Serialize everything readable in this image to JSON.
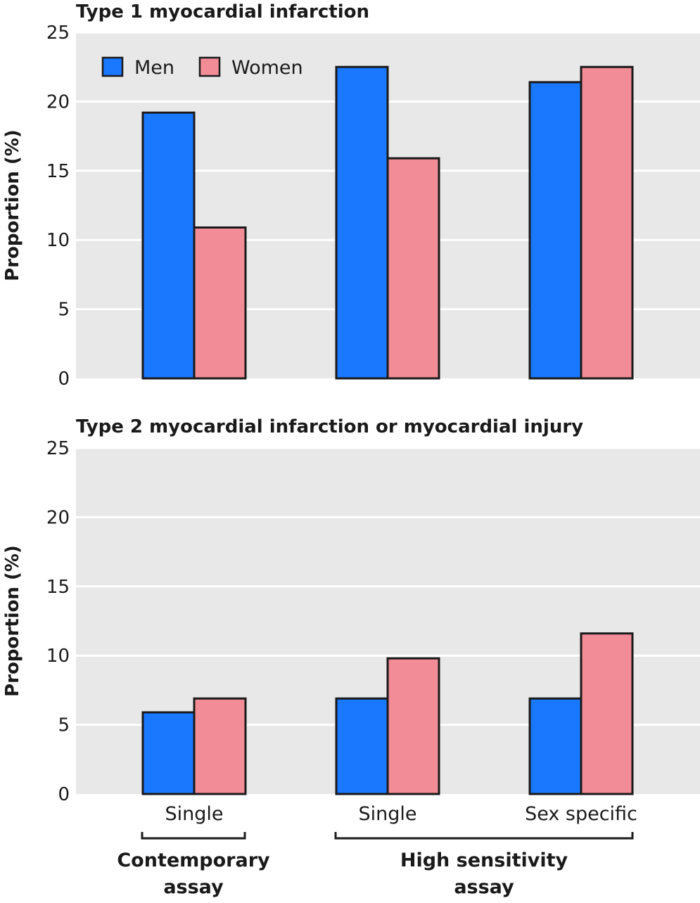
{
  "chart_data": [
    {
      "type": "bar",
      "title": "Type 1 myocardial infarction",
      "ylabel": "Proportion (%)",
      "ylim": [
        0,
        25
      ],
      "yticks": [
        0,
        5,
        10,
        15,
        20,
        25
      ],
      "grid": true,
      "categories": [
        "Contemporary assay – Single",
        "High sensitivity assay – Single",
        "High sensitivity assay – Sex specific"
      ],
      "series": [
        {
          "name": "Men",
          "color": "#1a78ff",
          "values": [
            19.2,
            22.5,
            21.4
          ]
        },
        {
          "name": "Women",
          "color": "#f28c96",
          "values": [
            10.9,
            15.9,
            22.5
          ]
        }
      ],
      "legend": {
        "placement": "top-left",
        "items": [
          "Men",
          "Women"
        ]
      }
    },
    {
      "type": "bar",
      "title": "Type 2 myocardial infarction or myocardial injury",
      "ylabel": "Proportion (%)",
      "ylim": [
        0,
        25
      ],
      "yticks": [
        0,
        5,
        10,
        15,
        20,
        25
      ],
      "grid": true,
      "categories": [
        "Contemporary assay – Single",
        "High sensitivity assay – Single",
        "High sensitivity assay – Sex specific"
      ],
      "series": [
        {
          "name": "Men",
          "color": "#1a78ff",
          "values": [
            5.9,
            6.9,
            6.9
          ]
        },
        {
          "name": "Women",
          "color": "#f28c96",
          "values": [
            6.9,
            9.8,
            11.6
          ]
        }
      ]
    }
  ],
  "x_axis": {
    "category_labels": [
      "Single",
      "Single",
      "Sex specific"
    ],
    "groups": [
      {
        "label_lines": [
          "Contemporary",
          "assay"
        ]
      },
      {
        "label_lines": [
          "High sensitivity",
          "assay"
        ]
      }
    ]
  },
  "colors": {
    "panel_bg": "#e8e8e8",
    "grid": "#ffffff",
    "bar_stroke": "#1a1a1a"
  }
}
